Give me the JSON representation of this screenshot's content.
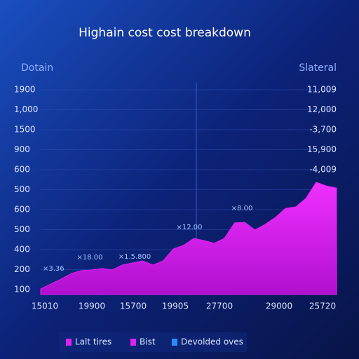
{
  "chart_data": {
    "type": "area",
    "title": "Highain cost cost breakdown",
    "left_axis_title": "Dotain",
    "right_axis_title": "Slateral",
    "y_labels": [
      "1900",
      "1,000",
      "1500",
      "900",
      "600",
      "500",
      "600",
      "500",
      "400",
      "200",
      "100"
    ],
    "y2_labels": [
      "11,009",
      "12,000",
      "-3,700",
      "15,900",
      "-4,009"
    ],
    "x_labels": [
      "15010",
      "19900",
      "15700",
      "19905",
      "27700",
      "29000",
      "25720"
    ],
    "annotations": [
      "×3.36",
      "×18.00",
      "×1.5.800",
      "×12.00",
      "×8.00"
    ],
    "ylim": [
      0,
      100
    ],
    "color": "#e020f0",
    "values": [
      2.6,
      5,
      7.3,
      9.9,
      11.3,
      11.6,
      12.3,
      11.6,
      13.9,
      14.9,
      15.9,
      13.9,
      15.9,
      21.5,
      23.2,
      26.5,
      25.5,
      24.2,
      26.5,
      33.8,
      34.1,
      30.5,
      33.1,
      36.4,
      40.7,
      41.4,
      45.4,
      53,
      51.3,
      50.3
    ],
    "legend": [
      {
        "name": "Lalt tires",
        "color": "#e020f0"
      },
      {
        "name": "Bist",
        "color": "#e020f0"
      },
      {
        "name": "Devolded oves",
        "color": "#2a8cff"
      }
    ]
  }
}
